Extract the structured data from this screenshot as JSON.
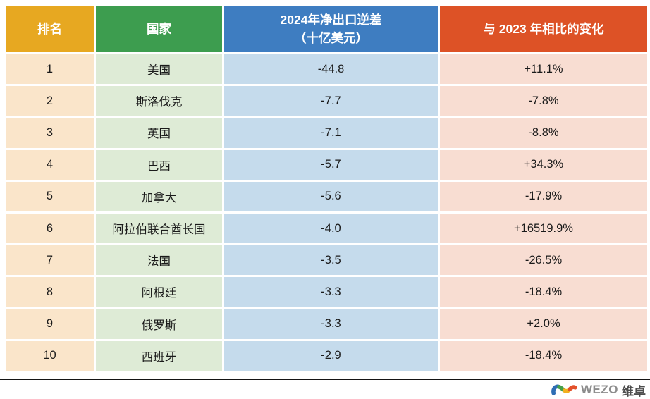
{
  "chart_data": {
    "type": "table",
    "title": "",
    "columns": [
      "排名",
      "国家",
      "2024年净出口逆差（十亿美元）",
      "与 2023 年相比的变化"
    ],
    "rows": [
      [
        "1",
        "美国",
        "-44.8",
        "+11.1%"
      ],
      [
        "2",
        "斯洛伐克",
        "-7.7",
        "-7.8%"
      ],
      [
        "3",
        "英国",
        "-7.1",
        "-8.8%"
      ],
      [
        "4",
        "巴西",
        "-5.7",
        "+34.3%"
      ],
      [
        "5",
        "加拿大",
        "-5.6",
        "-17.9%"
      ],
      [
        "6",
        "阿拉伯联合酋长国",
        "-4.0",
        "+16519.9%"
      ],
      [
        "7",
        "法国",
        "-3.5",
        "-26.5%"
      ],
      [
        "8",
        "阿根廷",
        "-3.3",
        "-18.4%"
      ],
      [
        "9",
        "俄罗斯",
        "-3.3",
        "+2.0%"
      ],
      [
        "10",
        "西班牙",
        "-2.9",
        "-18.4%"
      ]
    ]
  },
  "table": {
    "columns": [
      {
        "key": "rank",
        "label_lines": [
          "排名"
        ],
        "header_bg": "#E7A821",
        "cell_bg": "#FAE5CA"
      },
      {
        "key": "country",
        "label_lines": [
          "国家"
        ],
        "header_bg": "#3D9D4F",
        "cell_bg": "#DEEBD6"
      },
      {
        "key": "deficit",
        "label_lines": [
          "2024年净出口逆差",
          "（十亿美元）"
        ],
        "header_bg": "#3E7DC1",
        "cell_bg": "#C5DBEC"
      },
      {
        "key": "change",
        "label_lines": [
          "与 2023 年相比的变化"
        ],
        "header_bg": "#DD5226",
        "cell_bg": "#F8DDD2"
      }
    ],
    "header_text_color": "#FFFFFF",
    "body_text_color": "#1A1A1A"
  },
  "footer": {
    "brand_latin": "WEZO",
    "brand_cn": "维卓",
    "logo_colors": {
      "blue": "#2E6DB4",
      "green": "#45A049",
      "yellow": "#F2B01E",
      "red": "#E3512B"
    }
  }
}
